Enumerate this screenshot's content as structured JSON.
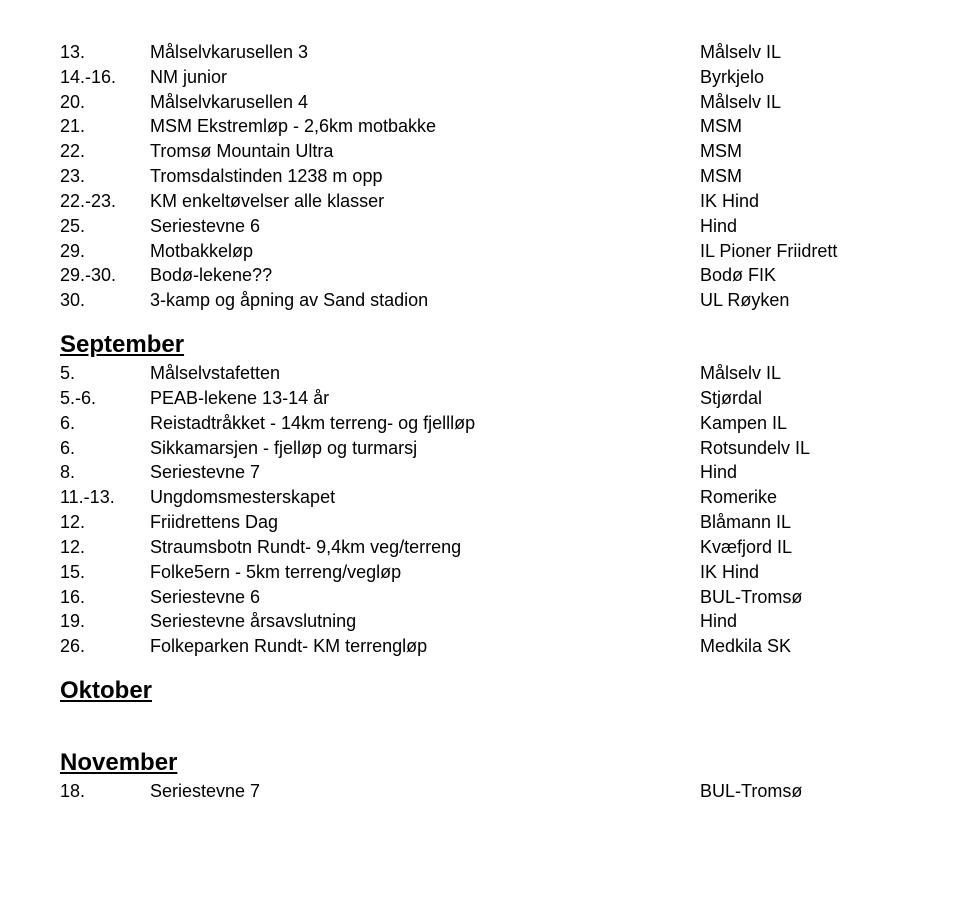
{
  "sections": [
    {
      "rows": [
        {
          "num": "13.",
          "event": "Målselvkarusellen 3",
          "org": "Målselv IL"
        },
        {
          "num": "14.-16.",
          "event": "NM junior",
          "org": "Byrkjelo"
        },
        {
          "num": "20.",
          "event": "Målselvkarusellen 4",
          "org": "Målselv IL"
        },
        {
          "num": "21.",
          "event": "MSM Ekstremløp - 2,6km motbakke",
          "org": "MSM"
        },
        {
          "num": "22.",
          "event": "Tromsø Mountain Ultra",
          "org": "MSM"
        },
        {
          "num": "23.",
          "event": "Tromsdalstinden 1238 m opp",
          "org": "MSM"
        },
        {
          "num": "22.-23.",
          "event": "KM enkeltøvelser alle klasser",
          "org": "IK Hind"
        },
        {
          "num": "25.",
          "event": "Seriestevne 6",
          "org": "Hind"
        },
        {
          "num": "29.",
          "event": "Motbakkeløp",
          "org": "IL Pioner Friidrett"
        },
        {
          "num": "29.-30.",
          "event": "Bodø-lekene??",
          "org": "Bodø FIK"
        },
        {
          "num": "30.",
          "event": "3-kamp og åpning av Sand stadion",
          "org": "UL Røyken"
        }
      ]
    },
    {
      "heading": "September",
      "rows": [
        {
          "num": "5.",
          "event": "Målselvstafetten",
          "org": "Målselv IL"
        },
        {
          "num": "5.-6.",
          "event": "PEAB-lekene 13-14 år",
          "org": "Stjørdal"
        },
        {
          "num": "6.",
          "event": "Reistadtråkket - 14km terreng- og fjellløp",
          "org": "Kampen IL"
        },
        {
          "num": "6.",
          "event": "Sikkamarsjen - fjelløp og turmarsj",
          "org": "Rotsundelv IL"
        },
        {
          "num": "8.",
          "event": "Seriestevne 7",
          "org": "Hind"
        },
        {
          "num": "11.-13.",
          "event": "Ungdomsmesterskapet",
          "org": "Romerike"
        },
        {
          "num": "12.",
          "event": "Friidrettens Dag",
          "org": "Blåmann IL"
        },
        {
          "num": "12.",
          "event": "Straumsbotn Rundt- 9,4km veg/terreng",
          "org": "Kvæfjord IL"
        },
        {
          "num": "15.",
          "event": "Folke5ern - 5km terreng/vegløp",
          "org": "IK Hind"
        },
        {
          "num": "16.",
          "event": "Seriestevne 6",
          "org": "BUL-Tromsø"
        },
        {
          "num": "19.",
          "event": "Seriestevne årsavslutning",
          "org": "Hind"
        },
        {
          "num": "26.",
          "event": "Folkeparken Rundt- KM terrengløp",
          "org": "Medkila SK"
        }
      ]
    },
    {
      "heading": "Oktober",
      "rows": []
    },
    {
      "heading": "November",
      "topGap": true,
      "rows": [
        {
          "num": "18.",
          "event": "Seriestevne 7",
          "org": "BUL-Tromsø"
        }
      ]
    }
  ]
}
